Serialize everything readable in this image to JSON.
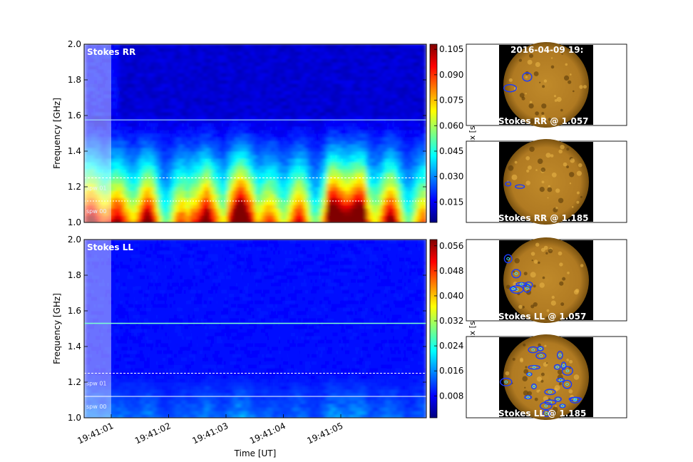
{
  "timestamp": "2016-04-09 19:",
  "chart_data": [
    {
      "type": "heatmap",
      "title": "Stokes RR",
      "ylabel": "Frequency [GHz]",
      "xlabel": "",
      "ylim": [
        1.0,
        2.0
      ],
      "yticks": [
        "1.0",
        "1.2",
        "1.4",
        "1.6",
        "1.8",
        "2.0"
      ],
      "xticks": [],
      "spw_labels": [
        "spw 01",
        "spw 00"
      ],
      "spw_lines": [
        1.25,
        1.12
      ],
      "rfi_line": 1.575,
      "colorbar": {
        "label": "Flux [sfu]",
        "ticks": [
          "0.015",
          "0.030",
          "0.045",
          "0.060",
          "0.075",
          "0.090",
          "0.105"
        ],
        "tick_values": [
          0.015,
          0.03,
          0.045,
          0.06,
          0.075,
          0.09,
          0.105
        ],
        "range": [
          0.003,
          0.108
        ]
      }
    },
    {
      "type": "heatmap",
      "title": "Stokes LL",
      "ylabel": "Frequency [GHz]",
      "xlabel": "Time [UT]",
      "ylim": [
        1.0,
        2.0
      ],
      "yticks": [
        "1.0",
        "1.2",
        "1.4",
        "1.6",
        "1.8",
        "2.0"
      ],
      "xticks": [
        "19:41:01",
        "19:41:02",
        "19:41:03",
        "19:41:04",
        "19:41:05"
      ],
      "spw_labels": [
        "spw 01",
        "spw 00"
      ],
      "spw_lines": [
        1.25,
        1.12
      ],
      "rfi_line": 1.53,
      "colorbar": {
        "label": "Flux [sfu]",
        "ticks": [
          "0.008",
          "0.016",
          "0.024",
          "0.032",
          "0.040",
          "0.048",
          "0.056"
        ],
        "tick_values": [
          0.008,
          0.016,
          0.024,
          0.032,
          0.04,
          0.048,
          0.056
        ],
        "range": [
          0.001,
          0.058
        ]
      }
    }
  ],
  "images": [
    {
      "label": "Stokes RR @ 1.057"
    },
    {
      "label": "Stokes RR @ 1.185"
    },
    {
      "label": "Stokes LL @ 1.057"
    },
    {
      "label": "Stokes LL @ 1.185"
    }
  ],
  "colors": {
    "colormap": [
      "#00007f",
      "#0000ff",
      "#007fff",
      "#00ffff",
      "#7fff7f",
      "#ffff00",
      "#ff7f00",
      "#ff0000",
      "#7f0000"
    ],
    "sun": "#d39a2c",
    "contour": "#1a3cff"
  }
}
